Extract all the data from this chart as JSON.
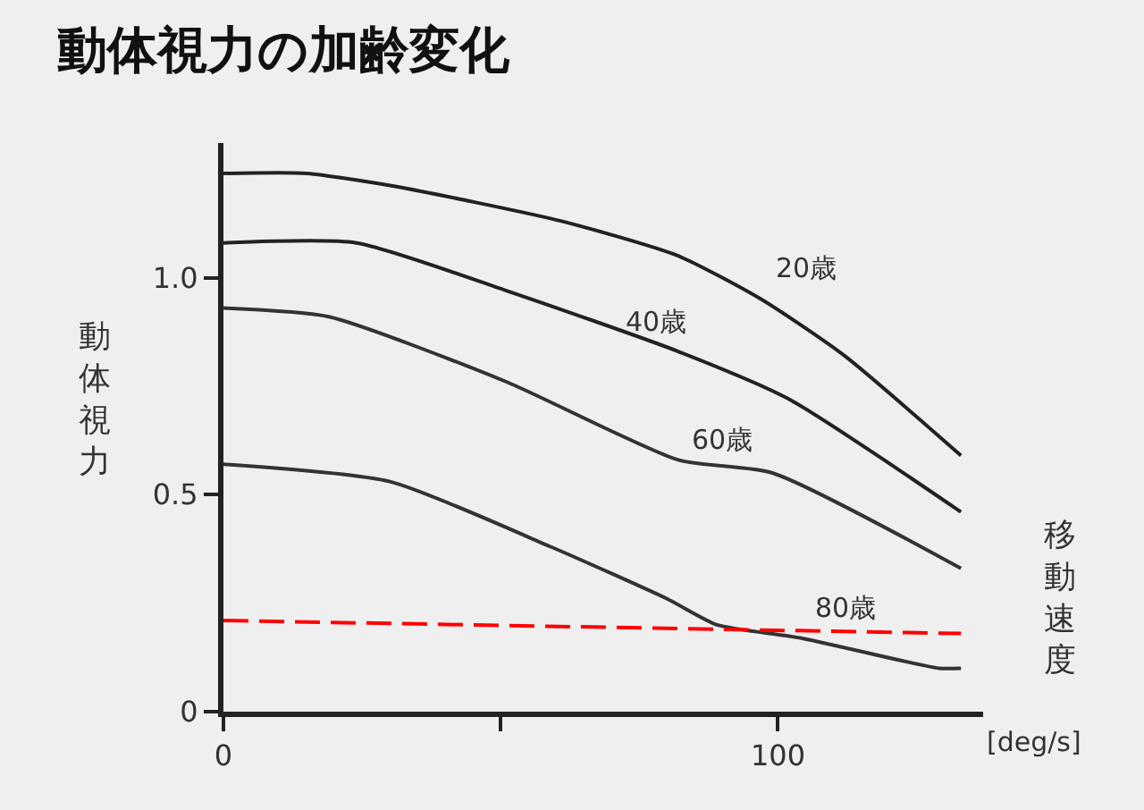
{
  "chart_data": {
    "type": "line",
    "title": "動体視力の加齢変化",
    "ylabel": "動体視力",
    "xlabel": "[deg/s]",
    "annotations": [
      "移動速度"
    ],
    "xlim": [
      0,
      137
    ],
    "ylim": [
      0,
      1.31
    ],
    "xticks": [
      0,
      {
        "value": 50,
        "label": null
      },
      100
    ],
    "yticks": [
      0,
      0.5,
      {
        "value": 1.0,
        "label": "1.0"
      }
    ],
    "grid": false,
    "legend": false,
    "marker": "none",
    "line_style": "solid",
    "series": [
      {
        "name": "20歳",
        "color": "#222222",
        "x": [
          0,
          15,
          31,
          61,
          82,
          97,
          112,
          133
        ],
        "values": [
          1.24,
          1.24,
          1.21,
          1.13,
          1.05,
          0.95,
          0.82,
          0.59
        ]
      },
      {
        "name": "40歳",
        "color": "#222222",
        "x": [
          0,
          24,
          51,
          82,
          102,
          133
        ],
        "values": [
          1.08,
          1.08,
          0.97,
          0.83,
          0.72,
          0.46
        ]
      },
      {
        "name": "60歳",
        "color": "#333333",
        "x": [
          0,
          19,
          51,
          82,
          99,
          133
        ],
        "values": [
          0.93,
          0.91,
          0.76,
          0.58,
          0.55,
          0.33
        ]
      },
      {
        "name": "80歳",
        "color": "#333333",
        "x": [
          0,
          30,
          59,
          80,
          89,
          104,
          129,
          133
        ],
        "values": [
          0.57,
          0.53,
          0.38,
          0.26,
          0.2,
          0.17,
          0.1,
          0.1
        ]
      },
      {
        "color": "#ff0000",
        "line_style": "dashed",
        "x": [
          0,
          133
        ],
        "values": [
          0.21,
          0.18
        ]
      }
    ]
  }
}
